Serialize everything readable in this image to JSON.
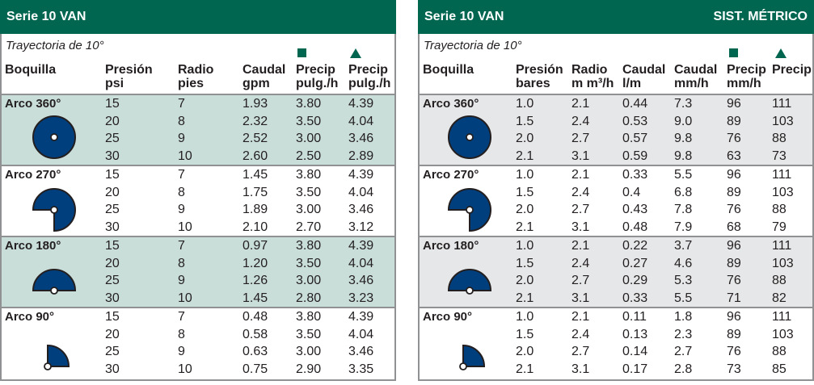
{
  "colors": {
    "brand": "#006650",
    "icon_fill": "#003f7d",
    "imperial_shade": "#c9ddd9",
    "metric_shade": "#e6e7e8"
  },
  "imperial": {
    "title": "Serie 10 VAN",
    "trajectory": "Trayectoria de 10°",
    "headers": [
      [
        "Boquilla",
        ""
      ],
      [
        "Presión",
        "psi"
      ],
      [
        "Radio",
        "pies"
      ],
      [
        "Caudal",
        "gpm"
      ],
      [
        "Precip",
        "pulg./h"
      ],
      [
        "Precip",
        "pulg./h"
      ]
    ],
    "markers": [
      "square-icon",
      "triangle-icon"
    ],
    "groups": [
      {
        "label": "Arco 360°",
        "arc": 360,
        "rows": [
          [
            "15",
            "7",
            "1.93",
            "3.80",
            "4.39"
          ],
          [
            "20",
            "8",
            "2.32",
            "3.50",
            "4.04"
          ],
          [
            "25",
            "9",
            "2.52",
            "3.00",
            "3.46"
          ],
          [
            "30",
            "10",
            "2.60",
            "2.50",
            "2.89"
          ]
        ]
      },
      {
        "label": "Arco 270°",
        "arc": 270,
        "rows": [
          [
            "15",
            "7",
            "1.45",
            "3.80",
            "4.39"
          ],
          [
            "20",
            "8",
            "1.75",
            "3.50",
            "4.04"
          ],
          [
            "25",
            "9",
            "1.89",
            "3.00",
            "3.46"
          ],
          [
            "30",
            "10",
            "2.10",
            "2.70",
            "3.12"
          ]
        ]
      },
      {
        "label": "Arco 180°",
        "arc": 180,
        "rows": [
          [
            "15",
            "7",
            "0.97",
            "3.80",
            "4.39"
          ],
          [
            "20",
            "8",
            "1.20",
            "3.50",
            "4.04"
          ],
          [
            "25",
            "9",
            "1.26",
            "3.00",
            "3.46"
          ],
          [
            "30",
            "10",
            "1.45",
            "2.80",
            "3.23"
          ]
        ]
      },
      {
        "label": "Arco 90°",
        "arc": 90,
        "rows": [
          [
            "15",
            "7",
            "0.48",
            "3.80",
            "4.39"
          ],
          [
            "20",
            "8",
            "0.58",
            "3.50",
            "4.04"
          ],
          [
            "25",
            "9",
            "0.63",
            "3.00",
            "3.46"
          ],
          [
            "30",
            "10",
            "0.75",
            "2.90",
            "3.35"
          ]
        ]
      }
    ]
  },
  "metric": {
    "title": "Serie 10 VAN",
    "subtitle": "SIST. MÉTRICO",
    "trajectory": "Trayectoria de 10°",
    "headers": [
      [
        "Boquilla",
        ""
      ],
      [
        "Presión",
        "bares"
      ],
      [
        "Radio",
        "m m³/h"
      ],
      [
        "Caudal",
        "l/m"
      ],
      [
        "Caudal",
        "mm/h"
      ],
      [
        "Precip",
        "mm/h"
      ],
      [
        "Precip",
        ""
      ]
    ],
    "markers": [
      "square-icon",
      "triangle-icon"
    ],
    "groups": [
      {
        "label": "Arco 360°",
        "arc": 360,
        "rows": [
          [
            "1.0",
            "2.1",
            "0.44",
            "7.3",
            "96",
            "111"
          ],
          [
            "1.5",
            "2.4",
            "0.53",
            "9.0",
            "89",
            "103"
          ],
          [
            "2.0",
            "2.7",
            "0.57",
            "9.8",
            "76",
            "88"
          ],
          [
            "2.1",
            "3.1",
            "0.59",
            "9.8",
            "63",
            "73"
          ]
        ]
      },
      {
        "label": "Arco 270°",
        "arc": 270,
        "rows": [
          [
            "1.0",
            "2.1",
            "0.33",
            "5.5",
            "96",
            "111"
          ],
          [
            "1.5",
            "2.4",
            "0.4",
            "6.8",
            "89",
            "103"
          ],
          [
            "2.0",
            "2.7",
            "0.43",
            "7.8",
            "76",
            "88"
          ],
          [
            "2.1",
            "3.1",
            "0.48",
            "7.9",
            "68",
            "79"
          ]
        ]
      },
      {
        "label": "Arco 180°",
        "arc": 180,
        "rows": [
          [
            "1.0",
            "2.1",
            "0.22",
            "3.7",
            "96",
            "111"
          ],
          [
            "1.5",
            "2.4",
            "0.27",
            "4.6",
            "89",
            "103"
          ],
          [
            "2.0",
            "2.7",
            "0.29",
            "5.3",
            "76",
            "88"
          ],
          [
            "2.1",
            "3.1",
            "0.33",
            "5.5",
            "71",
            "82"
          ]
        ]
      },
      {
        "label": "Arco 90°",
        "arc": 90,
        "rows": [
          [
            "1.0",
            "2.1",
            "0.11",
            "1.8",
            "96",
            "111"
          ],
          [
            "1.5",
            "2.4",
            "0.13",
            "2.3",
            "89",
            "103"
          ],
          [
            "2.0",
            "2.7",
            "0.14",
            "2.7",
            "76",
            "88"
          ],
          [
            "2.1",
            "3.1",
            "0.17",
            "2.8",
            "73",
            "85"
          ]
        ]
      }
    ]
  }
}
